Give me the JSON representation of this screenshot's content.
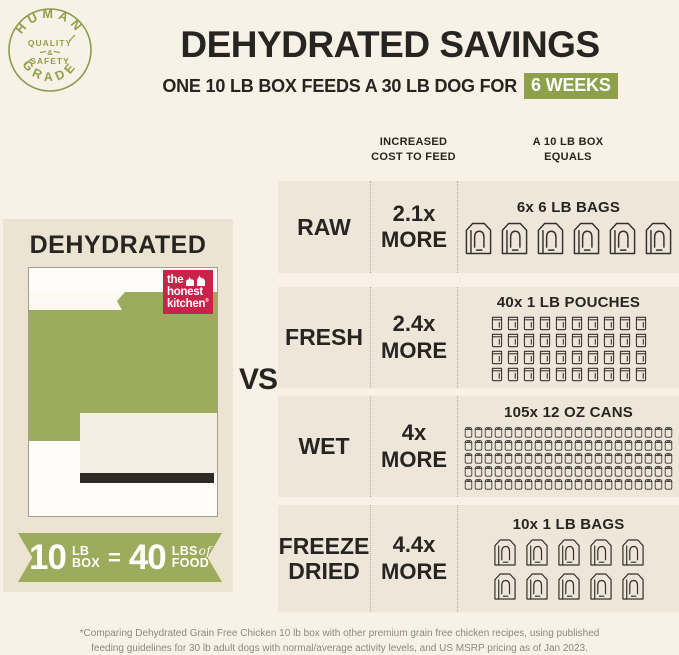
{
  "colors": {
    "page_bg": "#f7f1e6",
    "row_bg": "#eee7d9",
    "panel_bg": "#ece4d3",
    "ink": "#272521",
    "green": "#8fa04b",
    "box_green": "#9dab5c",
    "red": "#c92349",
    "cream": "#f3efe2",
    "foot_gray": "#8f897b"
  },
  "badge": {
    "top": "HUMAN",
    "q": "QUALITY",
    "amp": "&",
    "s": "SAFETY",
    "bottom": "GRADE"
  },
  "header": {
    "title": "DEHYDRATED SAVINGS",
    "subtitle_prefix": "ONE 10 LB BOX FEEDS A 30 LB DOG FOR",
    "subtitle_highlight": "6 WEEKS"
  },
  "panel": {
    "heading": "DEHYDRATED",
    "logo": {
      "line1": "the",
      "line2": "honest",
      "line3": "kitchen",
      "reg": "®"
    },
    "ribbon": {
      "v1": "10",
      "u1a": "LB",
      "u1b": "BOX",
      "eq": "=",
      "v2": "40",
      "u2a": "LBS",
      "of": "of",
      "u2b": "FOOD"
    }
  },
  "vs": "VS",
  "table": {
    "col1_header": "INCREASED COST TO FEED",
    "col1_line1": "INCREASED",
    "col1_line2": "COST TO FEED",
    "col2_line1": "A 10 LB BOX",
    "col2_line2": "EQUALS",
    "rows": [
      {
        "label": "RAW",
        "cost": "2.1x",
        "more": "MORE",
        "caption": "6x 6 LB BAGS",
        "icons": {
          "type": "bag",
          "count": 6,
          "per_row": 6
        }
      },
      {
        "label": "FRESH",
        "cost": "2.4x",
        "more": "MORE",
        "caption": "40x 1 LB POUCHES",
        "icons": {
          "type": "pouch",
          "count": 40,
          "per_row": 10
        }
      },
      {
        "label": "WET",
        "cost": "4x",
        "more": "MORE",
        "caption": "105x 12 OZ CANS",
        "icons": {
          "type": "can",
          "count": 105,
          "per_row": 21
        }
      },
      {
        "label": "FREEZE DRIED",
        "cost": "4.4x",
        "more": "MORE",
        "caption": "10x 1 LB BAGS",
        "icons": {
          "type": "bag",
          "count": 10,
          "per_row": 5
        }
      }
    ]
  },
  "footnote": {
    "line1": "*Comparing Dehydrated Grain Free Chicken 10 lb box with other premium grain free chicken recipes, using published",
    "line2": "feeding guidelines for 30 lb adult dogs with normal/average activity levels, and US MSRP pricing as of Jan 2023."
  }
}
